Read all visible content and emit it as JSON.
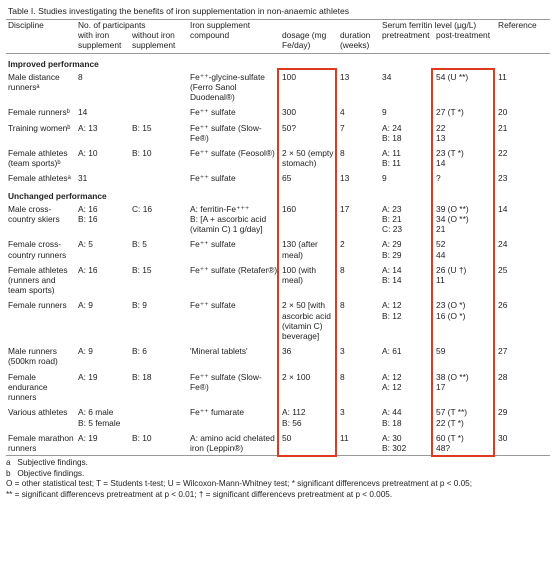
{
  "title": "Table I. Studies investigating the benefits of iron supplementation in non-anaemic athletes",
  "header": {
    "row1": [
      "Discipline",
      "No. of participants",
      "Iron supplement",
      "Serum ferritin level (μg/L)",
      "Reference"
    ],
    "row2": [
      "with iron supplement",
      "without iron supplement",
      "compound",
      "dosage (mg Fe/day)",
      "duration (weeks)",
      "pretreatment",
      "post-treatment"
    ]
  },
  "sections": [
    {
      "label": "Improved performance",
      "rows": [
        [
          "Male distance runnersᵃ",
          "8",
          "",
          "Fe⁺⁺-glycine-sulfate (Ferro Sanol Duodenal®)",
          "100",
          "13",
          "34",
          "54 (U **)",
          "11"
        ],
        [
          "Female runnersᵇ",
          "14",
          "",
          "Fe⁺⁺ sulfate",
          "300",
          "4",
          "9",
          "27 (T *)",
          "20"
        ],
        [
          "Training womenᵇ",
          "A: 13",
          "B: 15",
          "Fe⁺⁺ sulfate (Slow-Fe®)",
          "50?",
          "7",
          "A: 24\nB: 18",
          "22\n13",
          "21"
        ],
        [
          "Female athletes (team sports)ᵇ",
          "A: 10",
          "B: 10",
          "Fe⁺⁺ sulfate (Feosol®)",
          "2 × 50 (empty stomach)",
          "8",
          "A: 11\nB: 11",
          "23 (T *)\n14",
          "22"
        ],
        [
          "Female athletesᵃ",
          "31",
          "",
          "Fe⁺⁺ sulfate",
          "65",
          "13",
          "9",
          "?",
          "23"
        ]
      ]
    },
    {
      "label": "Unchanged performance",
      "rows": [
        [
          "Male cross-country skiers",
          "A: 16\nB: 16",
          "C: 16",
          "A: ferritin-Fe⁺⁺⁺\nB: [A + ascorbic acid (vitamin C) 1 g/day]",
          "160",
          "17",
          "A: 23\nB: 21\nC: 23",
          "39 (O **)\n34 (O **)\n21",
          "14"
        ],
        [
          "Female cross-country runners",
          "A: 5",
          "B: 5",
          "Fe⁺⁺ sulfate",
          "130 (after meal)",
          "2",
          "A: 29\nB: 29",
          "52\n44",
          "24"
        ],
        [
          "Female athletes (runners and team sports)",
          "A: 16",
          "B: 15",
          "Fe⁺⁺ sulfate (Retafer®)",
          "100 (with meal)",
          "8",
          "A: 14\nB: 14",
          "26 (U †)\n11",
          "25"
        ],
        [
          "Female runners",
          "A: 9",
          "B: 9",
          "Fe⁺⁺ sulfate",
          "2 × 50 [with ascorbic acid (vitamin C) beverage]",
          "8",
          "A: 12\nB: 12",
          "23 (O *)\n16 (O *)",
          "26"
        ],
        [
          "Male runners (500km road)",
          "A: 9",
          "B: 6",
          "'Mineral tablets'",
          "36",
          "3",
          "A: 61",
          "59",
          "27"
        ],
        [
          "Female endurance runners",
          "A: 19",
          "B: 18",
          "Fe⁺⁺ sulfate (Slow-Fe®)",
          "2 × 100",
          "8",
          "A: 12\nA: 12",
          "38 (O **)\n17",
          "28"
        ],
        [
          "Various athletes",
          "A: 6 male\nB: 5 female",
          "",
          "Fe⁺⁺ fumarate",
          "A: 112\nB: 56",
          "3",
          "A: 44\nB: 18",
          "57 (T **)\n22 (T *)",
          "29"
        ],
        [
          "Female marathon runners",
          "A: 19",
          "B: 10",
          "A: amino acid chelated iron (Leppin®)",
          "50",
          "11",
          "A: 30\nB: 302",
          "60 (T *)\n48?",
          "30"
        ]
      ]
    }
  ],
  "footnotes": [
    "a   Subjective findings.",
    "b   Objective findings.",
    "O = other statistical test; T = Students t-test; U = Wilcoxon-Mann-Whitney test; * significant differencevs pretreatment at p < 0.05;",
    "** = significant differencevs pretreatment at p < 0.01; † = significant differencevs pretreatment at p < 0.005."
  ]
}
